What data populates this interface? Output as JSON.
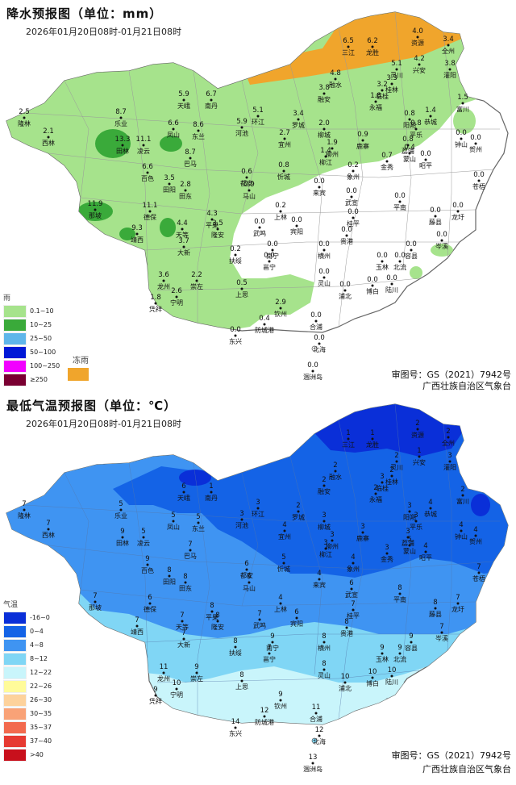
{
  "rain": {
    "title": "降水预报图（单位：mm）",
    "date": "2026年01月20日08时-01月21日08时",
    "legend_title": "雨",
    "legend": [
      {
        "label": "0.1~10",
        "color": "#a6e38c"
      },
      {
        "label": "10~25",
        "color": "#3aaa3a"
      },
      {
        "label": "25~50",
        "color": "#5fb6ea"
      },
      {
        "label": "50~100",
        "color": "#0018d6"
      },
      {
        "label": "100~250",
        "color": "#f200ff"
      },
      {
        "label": "≥250",
        "color": "#7a0032"
      }
    ],
    "freezing_label": "冻雨",
    "freezing_color": "#f0a52c",
    "credit_line1": "审图号：GS（2021）7942号",
    "credit_line2": "广西壮族自治区气象台",
    "stations": [
      {
        "v": "2.5",
        "n": "隆林"
      },
      {
        "v": "2.1",
        "n": "西林"
      },
      {
        "v": "8.7",
        "n": "乐业"
      },
      {
        "v": "5.9",
        "n": "天峨"
      },
      {
        "v": "6.7",
        "n": "南丹"
      },
      {
        "v": "13.3",
        "n": "田林"
      },
      {
        "v": "11.1",
        "n": "凌云"
      },
      {
        "v": "6.6",
        "n": "凤山"
      },
      {
        "v": "8.6",
        "n": "东兰"
      },
      {
        "v": "8.7",
        "n": "巴马"
      },
      {
        "v": "6.6",
        "n": "百色"
      },
      {
        "v": "3.5",
        "n": "田阳"
      },
      {
        "v": "2.8",
        "n": "田东"
      },
      {
        "v": "11.9",
        "n": "那坡"
      },
      {
        "v": "11.1",
        "n": "德保"
      },
      {
        "v": "9.3",
        "n": "靖西"
      },
      {
        "v": "4.4",
        "n": "天等"
      },
      {
        "v": "3.7",
        "n": "大新"
      },
      {
        "v": "3.6",
        "n": "龙州"
      },
      {
        "v": "2.6",
        "n": "宁明"
      },
      {
        "v": "1.8",
        "n": "凭祥"
      },
      {
        "v": "2.2",
        "n": "崇左"
      },
      {
        "v": "4.3",
        "n": "平果"
      },
      {
        "v": "3.5",
        "n": "隆安"
      },
      {
        "v": "0.6",
        "n": "都安"
      },
      {
        "v": "0.9",
        "n": "马山"
      },
      {
        "v": "5.1",
        "n": "环江"
      },
      {
        "v": "5.9",
        "n": "河池"
      },
      {
        "v": "3.4",
        "n": "罗城"
      },
      {
        "v": "2.7",
        "n": "宜州"
      },
      {
        "v": "0.8",
        "n": "忻城"
      },
      {
        "v": "2.0",
        "n": "柳城"
      },
      {
        "v": "1.9",
        "n": "柳州"
      },
      {
        "v": "1.4",
        "n": "柳江"
      },
      {
        "v": "0.2",
        "n": "象州"
      },
      {
        "v": "3.8",
        "n": "融安"
      },
      {
        "v": "4.8",
        "n": "融水"
      },
      {
        "v": "6.5",
        "n": "三江"
      },
      {
        "v": "6.2",
        "n": "龙胜"
      },
      {
        "v": "4.0",
        "n": "资源"
      },
      {
        "v": "3.4",
        "n": "全州"
      },
      {
        "v": "4.2",
        "n": "兴安"
      },
      {
        "v": "5.1",
        "n": "灵川"
      },
      {
        "v": "3.3",
        "n": "桂林"
      },
      {
        "v": "3.2",
        "n": "临桂"
      },
      {
        "v": "3.8",
        "n": "灌阳"
      },
      {
        "v": "1.8",
        "n": "永福"
      },
      {
        "v": "0.8",
        "n": "阳朔"
      },
      {
        "v": "0.8",
        "n": "平乐"
      },
      {
        "v": "1.4",
        "n": "恭城"
      },
      {
        "v": "1.5",
        "n": "富川"
      },
      {
        "v": "0.9",
        "n": "鹿寨"
      },
      {
        "v": "0.8",
        "n": "荔浦"
      },
      {
        "v": "0.4",
        "n": "蒙山"
      },
      {
        "v": "0.7",
        "n": "金秀"
      },
      {
        "v": "0.2",
        "n": "上林"
      },
      {
        "v": "0.0",
        "n": "宾阳"
      },
      {
        "v": "0.0",
        "n": "来宾"
      },
      {
        "v": "0.0",
        "n": "武宣"
      },
      {
        "v": "0.0",
        "n": "桂平"
      },
      {
        "v": "0.0",
        "n": "平南"
      },
      {
        "v": "0.0",
        "n": "藤县"
      },
      {
        "v": "0.0",
        "n": "苍梧"
      },
      {
        "v": "0.0",
        "n": "钟山"
      },
      {
        "v": "0.0",
        "n": "贺州"
      },
      {
        "v": "0.0",
        "n": "昭平"
      },
      {
        "v": "0.0",
        "n": "龙圩"
      },
      {
        "v": "0.0",
        "n": "岑溪"
      },
      {
        "v": "0.0",
        "n": "武鸣"
      },
      {
        "v": "0.0",
        "n": "南宁"
      },
      {
        "v": "0.0",
        "n": "邕宁"
      },
      {
        "v": "0.2",
        "n": "扶绥"
      },
      {
        "v": "0.5",
        "n": "上思"
      },
      {
        "v": "0.0",
        "n": "横州"
      },
      {
        "v": "0.0",
        "n": "贵港"
      },
      {
        "v": "0.0",
        "n": "玉林"
      },
      {
        "v": "0.0",
        "n": "北流"
      },
      {
        "v": "0.0",
        "n": "容县"
      },
      {
        "v": "0.0",
        "n": "灵山"
      },
      {
        "v": "0.0",
        "n": "浦北"
      },
      {
        "v": "0.0",
        "n": "博白"
      },
      {
        "v": "0.0",
        "n": "陆川"
      },
      {
        "v": "2.9",
        "n": "钦州"
      },
      {
        "v": "0.4",
        "n": "防城港"
      },
      {
        "v": "0.0",
        "n": "东兴"
      },
      {
        "v": "0.0",
        "n": "合浦"
      },
      {
        "v": "0.0",
        "n": "北海"
      },
      {
        "v": "0.0",
        "n": "涠洲岛"
      }
    ]
  },
  "temp": {
    "title": "最低气温预报图（单位：℃）",
    "date": "2026年01月20日08时-01月21日08时",
    "legend_title": "气温",
    "legend": [
      {
        "label": "-16~0",
        "color": "#0a2fd8"
      },
      {
        "label": "0~4",
        "color": "#1463e6"
      },
      {
        "label": "4~8",
        "color": "#3f94f2"
      },
      {
        "label": "8~12",
        "color": "#80d6f5"
      },
      {
        "label": "12~22",
        "color": "#c9f5fb"
      },
      {
        "label": "22~26",
        "color": "#fffb9a"
      },
      {
        "label": "26~30",
        "color": "#fdd29c"
      },
      {
        "label": "30~35",
        "color": "#f9a277"
      },
      {
        "label": "35~37",
        "color": "#f26a4e"
      },
      {
        "label": "37~40",
        "color": "#e63a32"
      },
      {
        "label": ">40",
        "color": "#c8101c"
      }
    ],
    "credit_line1": "审图号：GS（2021）7942号",
    "credit_line2": "广西壮族自治区气象台",
    "stations": [
      {
        "v": "7",
        "n": "隆林"
      },
      {
        "v": "7",
        "n": "西林"
      },
      {
        "v": "5",
        "n": "乐业"
      },
      {
        "v": "6",
        "n": "天峨"
      },
      {
        "v": "1",
        "n": "南丹"
      },
      {
        "v": "9",
        "n": "田林"
      },
      {
        "v": "5",
        "n": "凌云"
      },
      {
        "v": "5",
        "n": "凤山"
      },
      {
        "v": "5",
        "n": "东兰"
      },
      {
        "v": "7",
        "n": "巴马"
      },
      {
        "v": "9",
        "n": "百色"
      },
      {
        "v": "8",
        "n": "田阳"
      },
      {
        "v": "8",
        "n": "田东"
      },
      {
        "v": "7",
        "n": "那坡"
      },
      {
        "v": "6",
        "n": "德保"
      },
      {
        "v": "7",
        "n": "靖西"
      },
      {
        "v": "7",
        "n": "天等"
      },
      {
        "v": "7",
        "n": "大新"
      },
      {
        "v": "11",
        "n": "龙州"
      },
      {
        "v": "10",
        "n": "宁明"
      },
      {
        "v": "9",
        "n": "凭祥"
      },
      {
        "v": "9",
        "n": "崇左"
      },
      {
        "v": "8",
        "n": "平果"
      },
      {
        "v": "8",
        "n": "隆安"
      },
      {
        "v": "6",
        "n": "都安"
      },
      {
        "v": "6",
        "n": "马山"
      },
      {
        "v": "3",
        "n": "环江"
      },
      {
        "v": "3",
        "n": "河池"
      },
      {
        "v": "2",
        "n": "罗城"
      },
      {
        "v": "4",
        "n": "宜州"
      },
      {
        "v": "5",
        "n": "忻城"
      },
      {
        "v": "3",
        "n": "柳城"
      },
      {
        "v": "3",
        "n": "柳州"
      },
      {
        "v": "3",
        "n": "柳江"
      },
      {
        "v": "4",
        "n": "象州"
      },
      {
        "v": "2",
        "n": "融安"
      },
      {
        "v": "2",
        "n": "融水"
      },
      {
        "v": "1",
        "n": "三江"
      },
      {
        "v": "1",
        "n": "龙胜"
      },
      {
        "v": "2",
        "n": "资源"
      },
      {
        "v": "2",
        "n": "全州"
      },
      {
        "v": "1",
        "n": "兴安"
      },
      {
        "v": "2",
        "n": "灵川"
      },
      {
        "v": "2",
        "n": "桂林"
      },
      {
        "v": "3",
        "n": "临桂"
      },
      {
        "v": "3",
        "n": "灌阳"
      },
      {
        "v": "2",
        "n": "永福"
      },
      {
        "v": "3",
        "n": "阳朔"
      },
      {
        "v": "3",
        "n": "平乐"
      },
      {
        "v": "4",
        "n": "恭城"
      },
      {
        "v": "2",
        "n": "富川"
      },
      {
        "v": "3",
        "n": "鹿寨"
      },
      {
        "v": "3",
        "n": "荔浦"
      },
      {
        "v": "5",
        "n": "蒙山"
      },
      {
        "v": "3",
        "n": "金秀"
      },
      {
        "v": "4",
        "n": "上林"
      },
      {
        "v": "6",
        "n": "宾阳"
      },
      {
        "v": "4",
        "n": "来宾"
      },
      {
        "v": "6",
        "n": "武宣"
      },
      {
        "v": "7",
        "n": "桂平"
      },
      {
        "v": "8",
        "n": "平南"
      },
      {
        "v": "8",
        "n": "藤县"
      },
      {
        "v": "7",
        "n": "苍梧"
      },
      {
        "v": "4",
        "n": "钟山"
      },
      {
        "v": "4",
        "n": "贺州"
      },
      {
        "v": "4",
        "n": "昭平"
      },
      {
        "v": "7",
        "n": "龙圩"
      },
      {
        "v": "7",
        "n": "岑溪"
      },
      {
        "v": "7",
        "n": "武鸣"
      },
      {
        "v": "9",
        "n": "南宁"
      },
      {
        "v": "7",
        "n": "邕宁"
      },
      {
        "v": "8",
        "n": "扶绥"
      },
      {
        "v": "8",
        "n": "上思"
      },
      {
        "v": "8",
        "n": "横州"
      },
      {
        "v": "8",
        "n": "贵港"
      },
      {
        "v": "9",
        "n": "玉林"
      },
      {
        "v": "9",
        "n": "北流"
      },
      {
        "v": "9",
        "n": "容县"
      },
      {
        "v": "8",
        "n": "灵山"
      },
      {
        "v": "10",
        "n": "浦北"
      },
      {
        "v": "10",
        "n": "博白"
      },
      {
        "v": "10",
        "n": "陆川"
      },
      {
        "v": "9",
        "n": "钦州"
      },
      {
        "v": "12",
        "n": "防城港"
      },
      {
        "v": "14",
        "n": "东兴"
      },
      {
        "v": "11",
        "n": "合浦"
      },
      {
        "v": "12",
        "n": "北海"
      },
      {
        "v": "13",
        "n": "涠洲岛"
      }
    ]
  }
}
